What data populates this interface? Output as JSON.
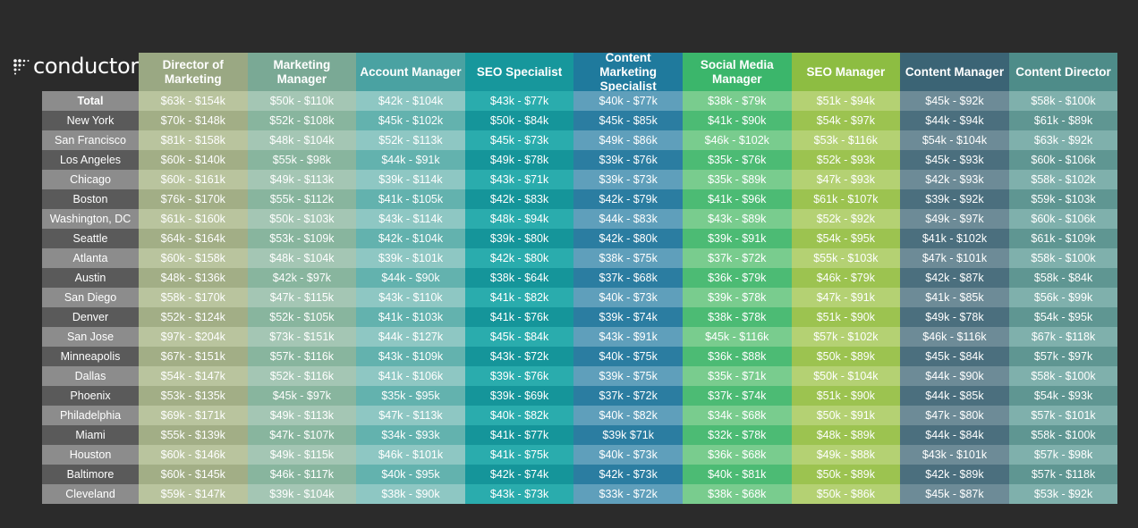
{
  "brand": {
    "name": "conductor",
    "tm": "®",
    "logo_icon": "dot-grid-icon"
  },
  "header": {
    "columns": [
      "Director of Marketing",
      "Marketing Manager",
      "Account Manager",
      "SEO Specialist",
      "Content Marketing Specialist",
      "Social Media Manager",
      "SEO Manager",
      "Content Manager",
      "Content Director"
    ]
  },
  "colors": {
    "header": [
      "#9aa883",
      "#7aa995",
      "#4aa2a2",
      "#17979c",
      "#1f7a9d",
      "#3bb66b",
      "#8dbd42",
      "#3b6475",
      "#4e8c89"
    ],
    "light": [
      "#b9c49e",
      "#a4c6b4",
      "#8ec7c3",
      "#2aacad",
      "#5f9fbb",
      "#79cc8e",
      "#b4d173",
      "#6d8b97",
      "#7fb0ac"
    ],
    "dark": [
      "#a2ae86",
      "#88b59e",
      "#63b2ae",
      "#15959a",
      "#2b7da1",
      "#4cbb74",
      "#9cc350",
      "#4b6f7e",
      "#5f9692"
    ]
  },
  "rows": [
    {
      "city": "Total",
      "values": [
        "$63k - $154k",
        "$50k - $110k",
        "$42k - $104k",
        "$43k - $77k",
        "$40k - $77k",
        "$38k - $79k",
        "$51k - $94k",
        "$45k - $92k",
        "$58k - $100k"
      ]
    },
    {
      "city": "New York",
      "values": [
        "$70k - $148k",
        "$52k - $108k",
        "$45k - $102k",
        "$50k - $84k",
        "$45k - $85k",
        "$41k - $90k",
        "$54k - $97k",
        "$44k - $94k",
        "$61k - $89k"
      ]
    },
    {
      "city": "San Francisco",
      "values": [
        "$81k - $158k",
        "$48k - $104k",
        "$52k - $113k",
        "$45k - $73k",
        "$49k - $86k",
        "$46k - $102k",
        "$53k - $116k",
        "$54k - $104k",
        "$63k - $92k"
      ]
    },
    {
      "city": "Los Angeles",
      "values": [
        "$60k - $140k",
        "$55k - $98k",
        "$44k - $91k",
        "$49k - $78k",
        "$39k - $76k",
        "$35k - $76k",
        "$52k - $93k",
        "$45k - $93k",
        "$60k - $106k"
      ]
    },
    {
      "city": "Chicago",
      "values": [
        "$60k - $161k",
        "$49k - $113k",
        "$39k - $114k",
        "$43k - $71k",
        "$39k - $73k",
        "$35k - $89k",
        "$47k - $93k",
        "$42k - $93k",
        "$58k - $102k"
      ]
    },
    {
      "city": "Boston",
      "values": [
        "$76k - $170k",
        "$55k - $112k",
        "$41k - $105k",
        "$42k - $83k",
        "$42k - $79k",
        "$41k - $96k",
        "$61k - $107k",
        "$39k - $92k",
        "$59k - $103k"
      ]
    },
    {
      "city": "Washington, DC",
      "values": [
        "$61k - $160k",
        "$50k - $103k",
        "$43k - $114k",
        "$48k - $94k",
        "$44k - $83k",
        "$43k - $89k",
        "$52k - $92k",
        "$49k - $97k",
        "$60k - $106k"
      ]
    },
    {
      "city": "Seattle",
      "values": [
        "$64k - $164k",
        "$53k - $109k",
        "$42k - $104k",
        "$39k - $80k",
        "$42k - $80k",
        "$39k - $91k",
        "$54k - $95k",
        "$41k - $102k",
        "$61k - $109k"
      ]
    },
    {
      "city": "Atlanta",
      "values": [
        "$60k - $158k",
        "$48k - $104k",
        "$39k - $101k",
        "$42k - $80k",
        "$38k - $75k",
        "$37k - $72k",
        "$55k - $103k",
        "$47k - $101k",
        "$58k - $100k"
      ]
    },
    {
      "city": "Austin",
      "values": [
        "$48k - $136k",
        "$42k - $97k",
        "$44k - $90k",
        "$38k - $64k",
        "$37k - $68k",
        "$36k - $79k",
        "$46k - $79k",
        "$42k - $87k",
        "$58k - $84k"
      ]
    },
    {
      "city": "San Diego",
      "values": [
        "$58k - $170k",
        "$47k - $115k",
        "$43k - $110k",
        "$41k - $82k",
        "$40k - $73k",
        "$39k - $78k",
        "$47k - $91k",
        "$41k - $85k",
        "$56k - $99k"
      ]
    },
    {
      "city": "Denver",
      "values": [
        "$52k - $124k",
        "$52k - $105k",
        "$41k - $103k",
        "$41k - $76k",
        "$39k - $74k",
        "$38k - $78k",
        "$51k - $90k",
        "$49k - $78k",
        "$54k - $95k"
      ]
    },
    {
      "city": "San Jose",
      "values": [
        "$97k - $204k",
        "$73k - $151k",
        "$44k - $127k",
        "$45k - $84k",
        "$43k - $91k",
        "$45k - $116k",
        "$57k - $102k",
        "$46k - $116k",
        "$67k - $118k"
      ]
    },
    {
      "city": "Minneapolis",
      "values": [
        "$67k - $151k",
        "$57k - $116k",
        "$43k - $109k",
        "$43k - $72k",
        "$40k - $75k",
        "$36k - $88k",
        "$50k - $89k",
        "$45k - $84k",
        "$57k - $97k"
      ]
    },
    {
      "city": "Dallas",
      "values": [
        "$54k - $147k",
        "$52k - $116k",
        "$41k - $106k",
        "$39k - $76k",
        "$39k - $75k",
        "$35k - $71k",
        "$50k - $104k",
        "$44k - $90k",
        "$58k - $100k"
      ]
    },
    {
      "city": "Phoenix",
      "values": [
        "$53k - $135k",
        "$45k - $97k",
        "$35k - $95k",
        "$39k - $69k",
        "$37k - $72k",
        "$37k - $74k",
        "$51k - $90k",
        "$44k - $85k",
        "$54k - $93k"
      ]
    },
    {
      "city": "Philadelphia",
      "values": [
        "$69k - $171k",
        "$49k - $113k",
        "$47k - $113k",
        "$40k - $82k",
        "$40k - $82k",
        "$34k - $68k",
        "$50k - $91k",
        "$47k - $80k",
        "$57k - $101k"
      ]
    },
    {
      "city": "Miami",
      "values": [
        "$55k - $139k",
        "$47k - $107k",
        "$34k - $93k",
        "$41k - $77k",
        "$39k   $71k",
        "$32k - $78k",
        "$48k - $89k",
        "$44k - $84k",
        "$58k - $100k"
      ]
    },
    {
      "city": "Houston",
      "values": [
        "$60k - $146k",
        "$49k - $115k",
        "$46k - $101k",
        "$41k - $75k",
        "$40k - $73k",
        "$36k - $68k",
        "$49k - $88k",
        "$43k - $101k",
        "$57k - $98k"
      ]
    },
    {
      "city": "Baltimore",
      "values": [
        "$60k - $145k",
        "$46k - $117k",
        "$40k - $95k",
        "$42k - $74k",
        "$42k - $73k",
        "$40k - $81k",
        "$50k - $89k",
        "$42k - $89k",
        "$57k - $118k"
      ]
    },
    {
      "city": "Cleveland",
      "values": [
        "$59k - $147k",
        "$39k - $104k",
        "$38k - $90k",
        "$43k - $73k",
        "$33k - $72k",
        "$38k - $68k",
        "$50k - $86k",
        "$45k - $87k",
        "$53k - $92k"
      ]
    }
  ]
}
